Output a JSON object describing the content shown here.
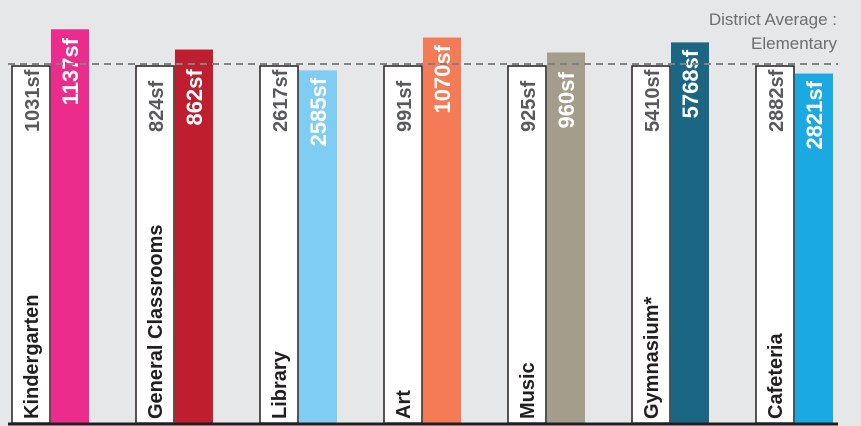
{
  "chart_data": {
    "type": "bar",
    "title": "",
    "xlabel": "",
    "ylabel": "",
    "reference_line": {
      "label_line1": "District Average :",
      "label_line2": "Elementary",
      "color": "#808285"
    },
    "categories": [
      "Kindergarten",
      "General Classrooms",
      "Library",
      "Art",
      "Music",
      "Gymnasium*",
      "Cafeteria"
    ],
    "series": [
      {
        "role": "district average",
        "values": [
          1031,
          824,
          2617,
          991,
          925,
          5410,
          2882
        ],
        "labels": [
          "1031sf",
          "824sf",
          "2617sf",
          "991sf",
          "925sf",
          "5410sf",
          "2882sf"
        ],
        "color": "#ffffff"
      },
      {
        "role": "school",
        "values": [
          1137,
          862,
          2585,
          1070,
          960,
          5768,
          2821
        ],
        "labels": [
          "1137sf",
          "862sf",
          "2585sf",
          "1070sf",
          "960sf",
          "5768sf",
          "2821sf"
        ],
        "colors": [
          "#ec2c8c",
          "#be1e2d",
          "#7fcdf2",
          "#f47b55",
          "#a59d8c",
          "#1b6682",
          "#1ba9e1"
        ]
      }
    ],
    "text_color": "#231f20",
    "average_label_color": "#6d6e71",
    "baseline_color": "#231f20"
  }
}
